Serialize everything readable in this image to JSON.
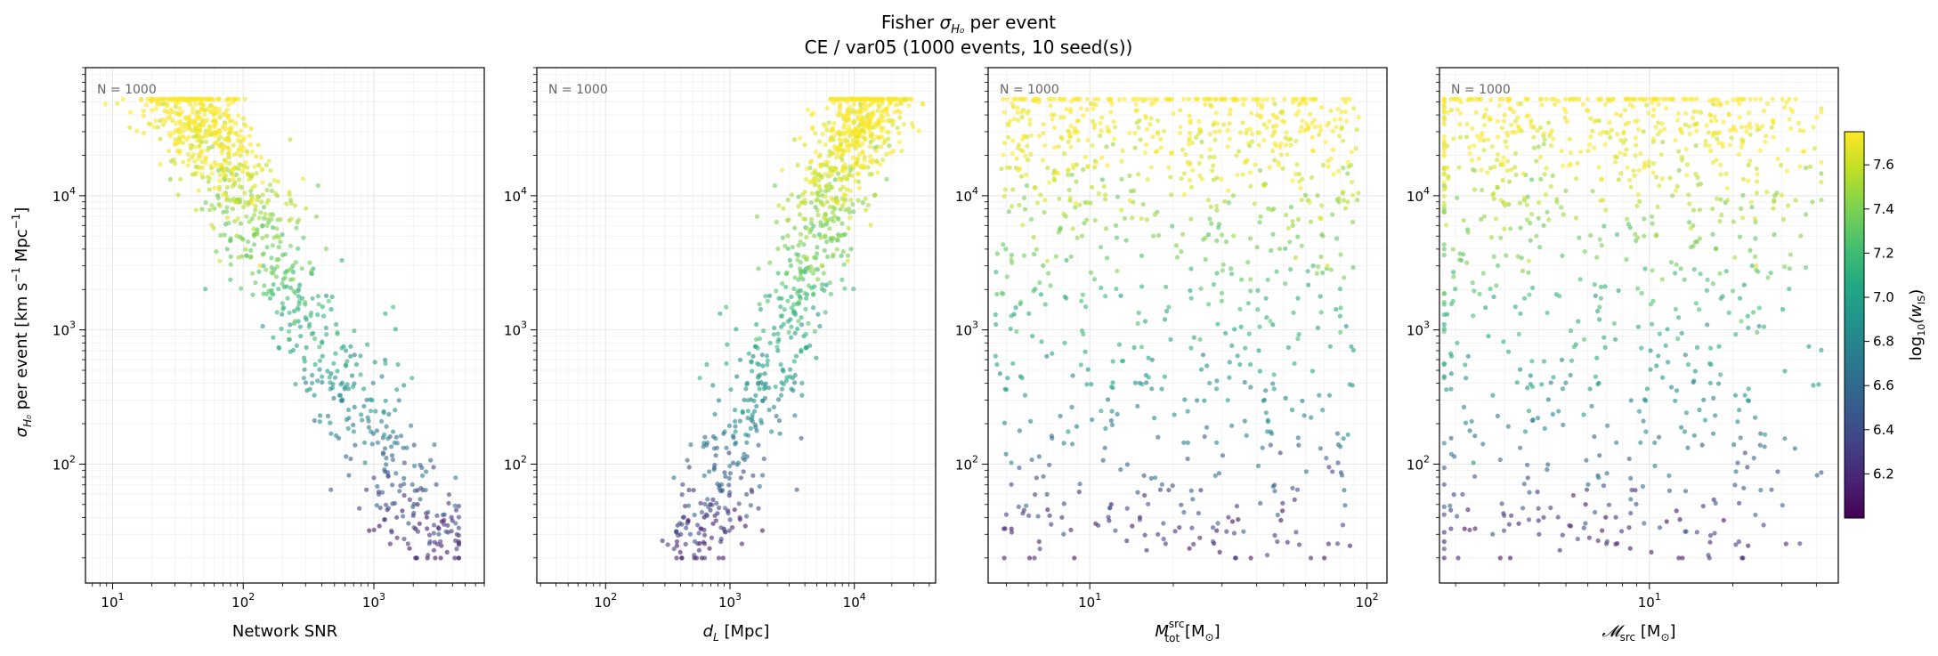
{
  "chart_data": {
    "type": "scatter",
    "title": "Fisher σ_{H₀} per event",
    "title_main": "Fisher ",
    "title_sym": "σ",
    "title_sub": "H₀",
    "title_tail": " per event",
    "subtitle": "CE / var05  (1000 events, 10 seed(s))",
    "ylabel": "σ_{H₀} per event [km s⁻¹ Mpc⁻¹]",
    "ylabel_parts": {
      "sym": "σ",
      "sub": "H₀",
      "rest": " per event [km s",
      "sup1": "−1",
      "mpc": " Mpc",
      "sup2": "−1",
      "close": "]"
    },
    "y_scale": "log",
    "ylim": [
      13,
      90000
    ],
    "y_ticks": [
      {
        "v": 100,
        "base": "10",
        "exp": "2"
      },
      {
        "v": 1000,
        "base": "10",
        "exp": "3"
      },
      {
        "v": 10000,
        "base": "10",
        "exp": "4"
      }
    ],
    "grid": true,
    "colorbar": {
      "label": "log₁₀(w_IS)",
      "label_main": "log",
      "label_sub": "10",
      "label_arg": "(w",
      "label_argsub": "IS",
      "label_close": ")",
      "colormap": "viridis",
      "range": [
        6.0,
        7.75
      ],
      "ticks": [
        "6.2",
        "6.4",
        "6.6",
        "6.8",
        "7.0",
        "7.2",
        "7.4",
        "7.6"
      ]
    },
    "panels": [
      {
        "xlabel": "Network SNR",
        "xlabel_parts": {
          "a": "Network SNR",
          "sub": "",
          "b": "",
          "sup": ""
        },
        "x_scale": "log",
        "xlim": [
          6.2,
          7000
        ],
        "x_ticks": [
          {
            "v": 10,
            "base": "10",
            "exp": "1"
          },
          {
            "v": 100,
            "base": "10",
            "exp": "2"
          },
          {
            "v": 1000,
            "base": "10",
            "exp": "3"
          }
        ],
        "annotation": "N = 1000",
        "n_points": 1000
      },
      {
        "xlabel": "d_L [Mpc]",
        "xlabel_parts": {
          "a": "d",
          "sub": "L",
          "b": " [Mpc]",
          "sup": ""
        },
        "x_scale": "log",
        "xlim": [
          28,
          45000
        ],
        "x_ticks": [
          {
            "v": 100,
            "base": "10",
            "exp": "2"
          },
          {
            "v": 1000,
            "base": "10",
            "exp": "3"
          },
          {
            "v": 10000,
            "base": "10",
            "exp": "4"
          }
        ],
        "annotation": "N = 1000",
        "n_points": 1000
      },
      {
        "xlabel": "M_tot^src [M_⊙]",
        "xlabel_parts": {
          "a": "M",
          "sub": "tot",
          "b": " [M",
          "sup": "src",
          "msub": "⊙",
          "close": "]"
        },
        "x_scale": "log",
        "xlim": [
          4.3,
          118
        ],
        "x_ticks": [
          {
            "v": 10,
            "base": "10",
            "exp": "1"
          },
          {
            "v": 100,
            "base": "10",
            "exp": "2"
          }
        ],
        "annotation": "N = 1000",
        "n_points": 1000
      },
      {
        "xlabel": "𝓜_src [M_⊙]",
        "xlabel_parts": {
          "a": "𝓜",
          "sub": "src",
          "b": " [M",
          "sup": "",
          "msub": "⊙",
          "close": "]"
        },
        "x_scale": "log",
        "xlim": [
          1.75,
          48
        ],
        "x_ticks": [
          {
            "v": 10,
            "base": "10",
            "exp": "1"
          }
        ],
        "annotation": "N = 1000",
        "n_points": 1000
      }
    ]
  }
}
